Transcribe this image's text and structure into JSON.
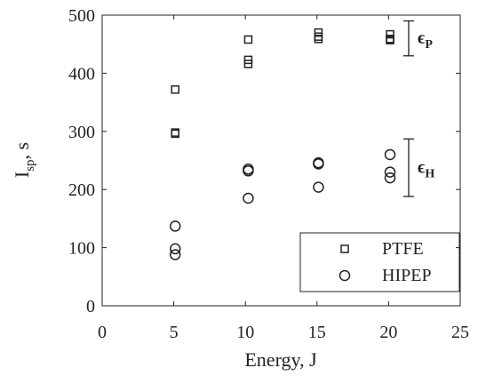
{
  "chart_data": {
    "type": "scatter",
    "xlabel": "Energy, J",
    "ylabel": {
      "main": "I",
      "sub": "sp",
      "rest": ", s"
    },
    "xlim": [
      0,
      25
    ],
    "xticks": [
      0,
      5,
      10,
      15,
      20,
      25
    ],
    "ylim": [
      0,
      500
    ],
    "yticks": [
      0,
      100,
      200,
      300,
      400,
      500
    ],
    "legend": "lower right",
    "series": [
      {
        "name": "PTFE",
        "marker": "square",
        "color": "#222222",
        "x": [
          5.1,
          5.1,
          5.1,
          10.2,
          10.2,
          10.2,
          15.1,
          15.1,
          15.1,
          20.1,
          20.1,
          20.1
        ],
        "values": [
          372,
          298,
          296,
          458,
          423,
          416,
          470,
          463,
          459,
          467,
          459,
          457
        ]
      },
      {
        "name": "HIPEP",
        "marker": "circle",
        "color": "#222222",
        "x": [
          5.1,
          5.1,
          5.1,
          10.2,
          10.2,
          10.2,
          15.1,
          15.1,
          15.1,
          20.1,
          20.1,
          20.1
        ],
        "values": [
          137,
          98,
          88,
          235,
          232,
          185,
          246,
          244,
          204,
          260,
          230,
          220
        ]
      }
    ],
    "annotations": [
      {
        "text": "ϵ",
        "sub": "P",
        "x": 21.4,
        "range": [
          430,
          490
        ]
      },
      {
        "text": "ϵ",
        "sub": "H",
        "x": 21.4,
        "range": [
          188,
          287
        ]
      }
    ]
  }
}
